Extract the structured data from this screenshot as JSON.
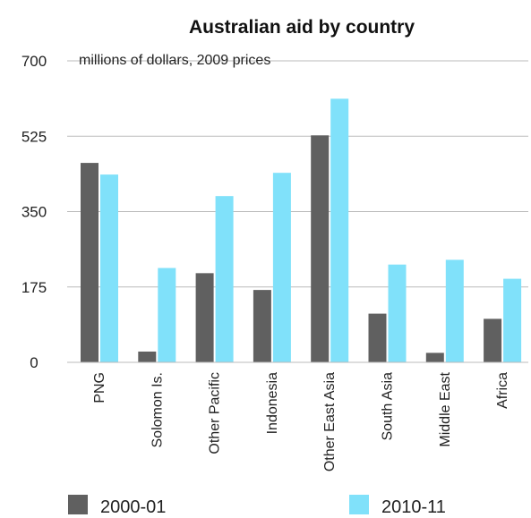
{
  "chart_data": {
    "type": "bar",
    "title": "Australian aid by country",
    "subtitle": "millions of dollars, 2009 prices",
    "xlabel": "",
    "ylabel": "",
    "ylim": [
      0,
      700
    ],
    "yticks": [
      0,
      175,
      350,
      525,
      700
    ],
    "grid": true,
    "legend_position": "bottom",
    "categories": [
      "PNG",
      "Solomon Is.",
      "Other Pacific",
      "Indonesia",
      "Other East Asia",
      "South Asia",
      "Middle East",
      "Africa"
    ],
    "series": [
      {
        "name": "2000-01",
        "color": "#606060",
        "values": [
          463,
          25,
          207,
          168,
          527,
          113,
          22,
          101
        ]
      },
      {
        "name": "2010-11",
        "color": "#80e1fa",
        "values": [
          436,
          219,
          386,
          440,
          612,
          227,
          238,
          194
        ]
      }
    ]
  }
}
